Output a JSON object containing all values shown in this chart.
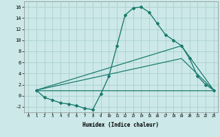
{
  "xlabel": "Humidex (Indice chaleur)",
  "line_color": "#1a7a6e",
  "bg_color": "#cce8e8",
  "grid_color": "#aad0d0",
  "xlim": [
    -0.5,
    23.5
  ],
  "ylim": [
    -3,
    17
  ],
  "xticks": [
    0,
    1,
    2,
    3,
    4,
    5,
    6,
    7,
    8,
    9,
    10,
    11,
    12,
    13,
    14,
    15,
    16,
    17,
    18,
    19,
    20,
    21,
    22,
    23
  ],
  "yticks": [
    -2,
    0,
    2,
    4,
    6,
    8,
    10,
    12,
    14,
    16
  ],
  "curve1_x": [
    1,
    2,
    3,
    4,
    5,
    6,
    7,
    8,
    9,
    10,
    11,
    12,
    13,
    14,
    15,
    16,
    17,
    18,
    19,
    20,
    21,
    22,
    23
  ],
  "curve1_y": [
    1,
    -0.3,
    -0.8,
    -1.3,
    -1.5,
    -1.8,
    -2.3,
    -2.5,
    0.3,
    3.5,
    9,
    14.5,
    15.8,
    16,
    15,
    13,
    11,
    10,
    9,
    6.7,
    3.5,
    2,
    1
  ],
  "curve2_x": [
    1,
    19,
    23
  ],
  "curve2_y": [
    1,
    9,
    1
  ],
  "curve3_x": [
    1,
    19,
    23
  ],
  "curve3_y": [
    1,
    6.7,
    1
  ],
  "curve4_x": [
    1,
    23
  ],
  "curve4_y": [
    1,
    1
  ]
}
